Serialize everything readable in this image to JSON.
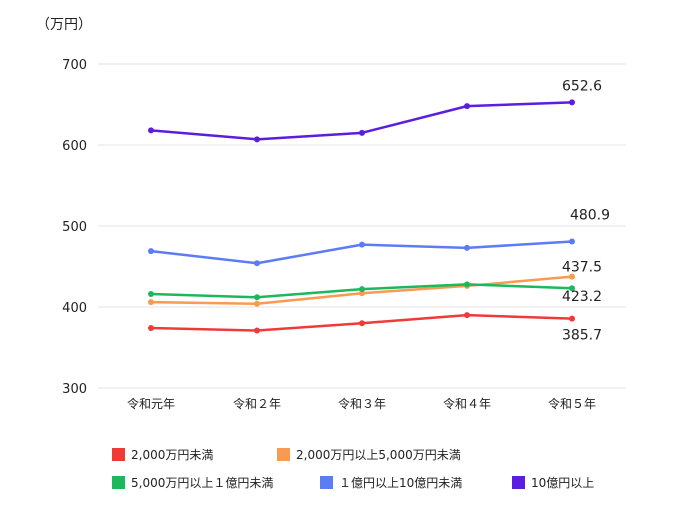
{
  "chart_data": {
    "type": "line",
    "unit_label": "（万円）",
    "categories": [
      "令和元年",
      "令和２年",
      "令和３年",
      "令和４年",
      "令和５年"
    ],
    "ylim": [
      300,
      700
    ],
    "yticks": [
      "300",
      "400",
      "500",
      "600",
      "700"
    ],
    "grid": true,
    "legend_position": "bottom",
    "series": [
      {
        "name": "2,000万円未満",
        "color": "#f03a3a",
        "values": [
          374,
          371,
          380,
          390,
          385.7
        ],
        "end_label": "385.7"
      },
      {
        "name": "2,000万円以上5,000万円未満",
        "color": "#f89a4f",
        "values": [
          406,
          404,
          417,
          426,
          437.5
        ],
        "end_label": "437.5"
      },
      {
        "name": "5,000万円以上１億円未満",
        "color": "#1cb85c",
        "values": [
          416,
          412,
          422,
          428,
          423.2
        ],
        "end_label": "423.2"
      },
      {
        "name": "１億円以上10億円未満",
        "color": "#5b7cf5",
        "values": [
          469,
          454,
          477,
          473,
          480.9
        ],
        "end_label": "480.9"
      },
      {
        "name": "10億円以上",
        "color": "#5b1ee0",
        "values": [
          618,
          607,
          615,
          648,
          652.6
        ],
        "end_label": "652.6"
      }
    ]
  }
}
